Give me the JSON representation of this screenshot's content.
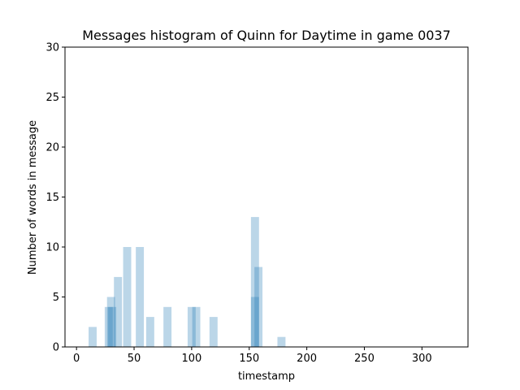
{
  "chart_data": {
    "type": "bar",
    "title": "Messages histogram of Quinn for Daytime in game 0037",
    "xlabel": "timestamp",
    "ylabel": "Number of words in message",
    "xlim": [
      -10,
      340
    ],
    "ylim": [
      0,
      30
    ],
    "x_ticks": [
      0,
      50,
      100,
      150,
      200,
      250,
      300
    ],
    "y_ticks": [
      0,
      5,
      10,
      15,
      20,
      25,
      30
    ],
    "grid": false,
    "bar_color": "#1f77b4",
    "bar_opacity": 0.3,
    "bar_width": 7,
    "bars": [
      {
        "x": 14,
        "y": 2
      },
      {
        "x": 28,
        "y": 4
      },
      {
        "x": 30,
        "y": 5
      },
      {
        "x": 31,
        "y": 4
      },
      {
        "x": 36,
        "y": 7
      },
      {
        "x": 44,
        "y": 10
      },
      {
        "x": 55,
        "y": 10
      },
      {
        "x": 64,
        "y": 3
      },
      {
        "x": 79,
        "y": 4
      },
      {
        "x": 100,
        "y": 4
      },
      {
        "x": 104,
        "y": 4
      },
      {
        "x": 119,
        "y": 3
      },
      {
        "x": 155,
        "y": 13
      },
      {
        "x": 155,
        "y": 5
      },
      {
        "x": 158,
        "y": 8
      },
      {
        "x": 178,
        "y": 1
      }
    ]
  }
}
